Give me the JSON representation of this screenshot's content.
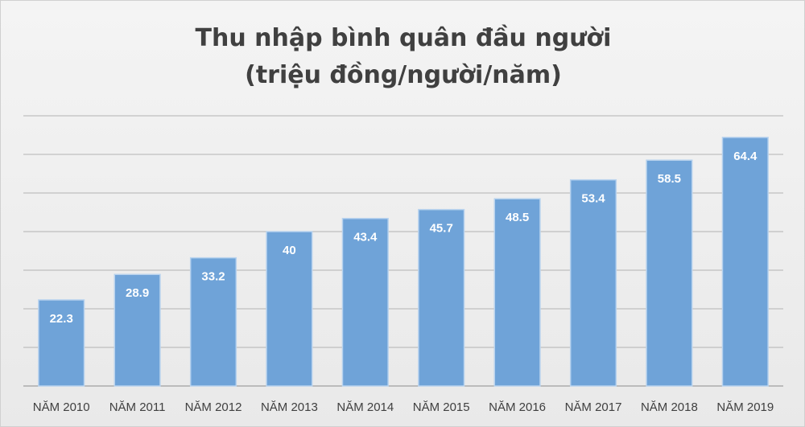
{
  "chart_data": {
    "type": "bar",
    "title": "Thu nhập bình quân đầu người (triệu đồng/người/năm)",
    "categories": [
      "NĂM 2010",
      "NĂM 2011",
      "NĂM 2012",
      "NĂM 2013",
      "NĂM 2014",
      "NĂM 2015",
      "NĂM 2016",
      "NĂM 2017",
      "NĂM 2018",
      "NĂM 2019"
    ],
    "values": [
      22.3,
      28.9,
      33.2,
      40,
      43.4,
      45.7,
      48.5,
      53.4,
      58.5,
      64.4
    ],
    "color": "#6fa3d8",
    "ylim": [
      0,
      70
    ],
    "yticks": [
      0,
      10,
      20,
      30,
      40,
      50,
      60,
      70
    ],
    "grid": true
  }
}
